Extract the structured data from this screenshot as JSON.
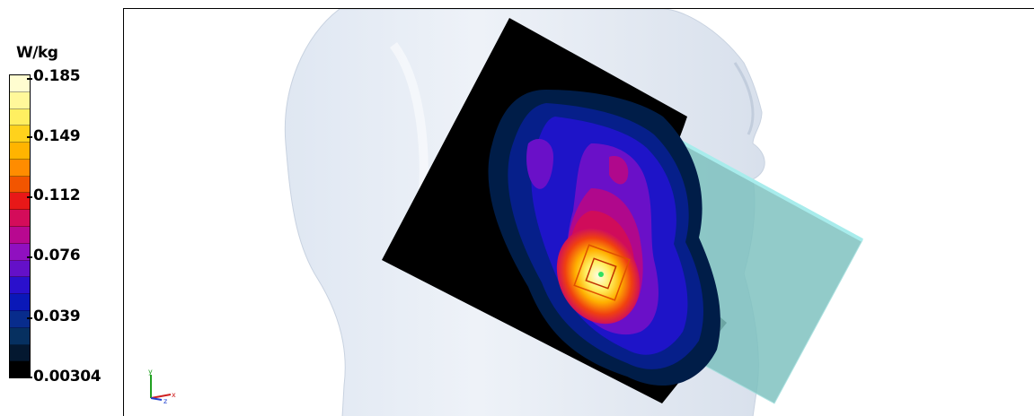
{
  "legend": {
    "unit": "W/kg",
    "ticks": [
      {
        "label": "0.185",
        "value": 0.185
      },
      {
        "label": "0.149",
        "value": 0.149
      },
      {
        "label": "0.112",
        "value": 0.112
      },
      {
        "label": "0.076",
        "value": 0.076
      },
      {
        "label": "0.039",
        "value": 0.039
      },
      {
        "label": "0.00304",
        "value": 0.00304
      }
    ],
    "colors": [
      "#fffdd0",
      "#fff89a",
      "#ffef60",
      "#ffd21c",
      "#ffb400",
      "#ff8c00",
      "#f25500",
      "#e81818",
      "#d40c5a",
      "#b80890",
      "#9010c0",
      "#6410c8",
      "#2a10cc",
      "#0a18b8",
      "#082c8c",
      "#063060",
      "#041830",
      "#000000"
    ]
  },
  "axes": {
    "y_label": "y",
    "x_label": "x",
    "z_label": "z"
  },
  "icons": {
    "triad": "axes-triad-icon",
    "head": "head-model-icon",
    "phone": "phone-model-icon",
    "probe": "probe-cube-icon"
  }
}
